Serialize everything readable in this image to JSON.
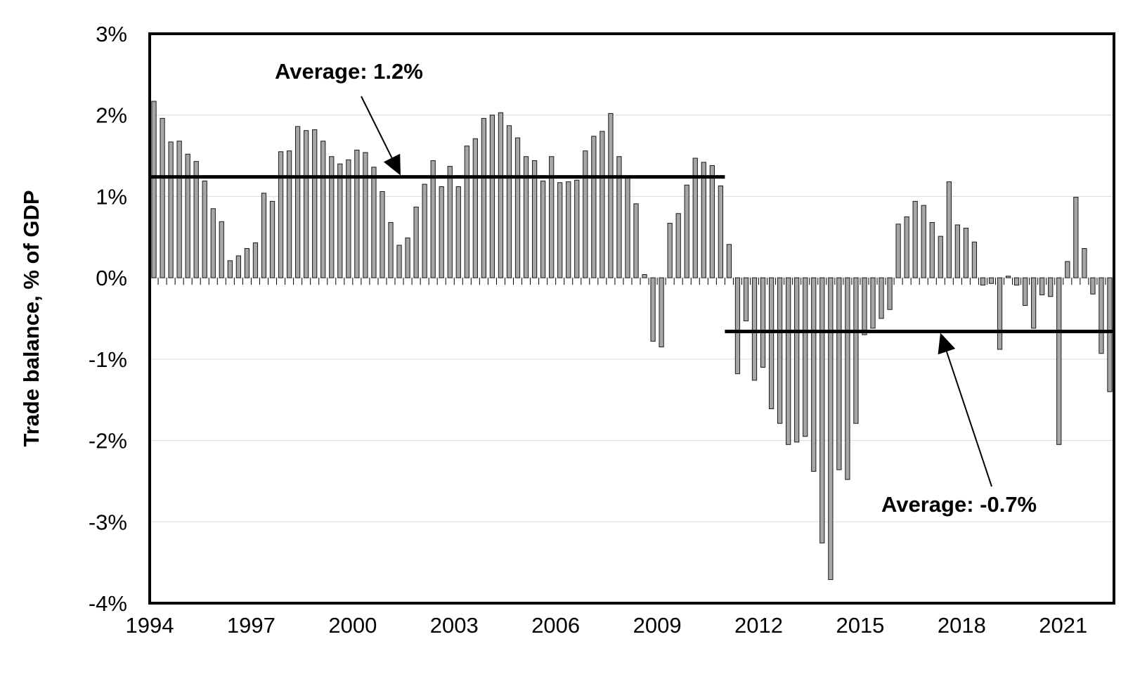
{
  "chart_data": {
    "type": "bar",
    "title": "",
    "xlabel": "",
    "ylabel": "Trade balance, % of GDP",
    "ylim": [
      -4,
      3
    ],
    "yticks": [
      {
        "value": 3,
        "label": "3%"
      },
      {
        "value": 2,
        "label": "2%"
      },
      {
        "value": 1,
        "label": "1%"
      },
      {
        "value": 0,
        "label": "0%"
      },
      {
        "value": -1,
        "label": "-1%"
      },
      {
        "value": -2,
        "label": "-2%"
      },
      {
        "value": -3,
        "label": "-3%"
      },
      {
        "value": -4,
        "label": "-4%"
      }
    ],
    "xticks": [
      "1994",
      "1997",
      "2000",
      "2003",
      "2006",
      "2009",
      "2012",
      "2015",
      "2018",
      "2021"
    ],
    "grid": true,
    "frequency": "quarterly",
    "start": "1994Q1",
    "series": [
      {
        "values": [
          2.17,
          1.96,
          1.67,
          1.68,
          1.52,
          1.43,
          1.19,
          0.85,
          0.69,
          0.21,
          0.27,
          0.36,
          0.43,
          1.04,
          0.94,
          1.55,
          1.56,
          1.86,
          1.81,
          1.82,
          1.68,
          1.49,
          1.4,
          1.45,
          1.57,
          1.54,
          1.36,
          1.06,
          0.68,
          0.4,
          0.49,
          0.87,
          1.15,
          1.44,
          1.12,
          1.37,
          1.12,
          1.62,
          1.71,
          1.96,
          2.0,
          2.03,
          1.87,
          1.72,
          1.49,
          1.44,
          1.19,
          1.49,
          1.17,
          1.18,
          1.2,
          1.56,
          1.74,
          1.8,
          2.02,
          1.49,
          1.24,
          0.91,
          0.04,
          -0.78,
          -0.85,
          0.67,
          0.79,
          1.14,
          1.47,
          1.42,
          1.38,
          1.13,
          0.41,
          -1.18,
          -0.53,
          -1.26,
          -1.1,
          -1.61,
          -1.79,
          -2.05,
          -2.02,
          -1.95,
          -2.38,
          -3.26,
          -3.71,
          -2.36,
          -2.48,
          -1.79,
          -0.7,
          -0.62,
          -0.5,
          -0.39,
          0.66,
          0.75,
          0.94,
          0.89,
          0.68,
          0.51,
          1.18,
          0.65,
          0.61,
          0.44,
          -0.09,
          -0.07,
          -0.88,
          0.02,
          -0.09,
          -0.34,
          -0.62,
          -0.21,
          -0.23,
          -2.05,
          0.2,
          0.99,
          0.36,
          -0.2,
          -0.93,
          -1.4
        ]
      }
    ],
    "annotations": [
      {
        "text": "Average: 1.2%",
        "value": 1.24,
        "from": "1994Q1",
        "to": "2010Q4"
      },
      {
        "text": "Average: -0.7%",
        "value": -0.66,
        "from": "2011Q1",
        "to": "2022Q2"
      }
    ]
  }
}
